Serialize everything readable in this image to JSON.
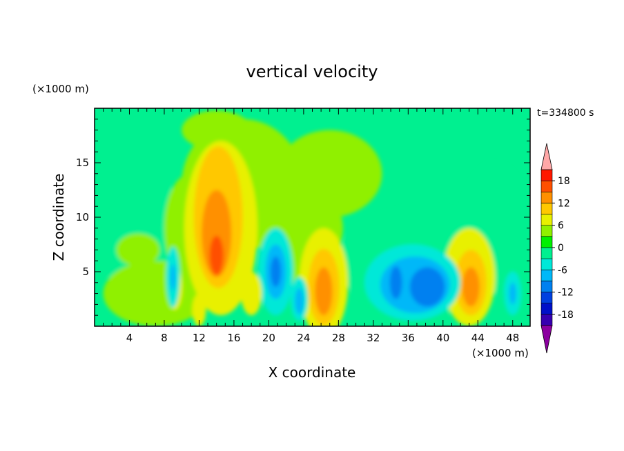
{
  "chart_data": {
    "type": "heatmap",
    "title": "vertical velocity",
    "xlabel": "X coordinate",
    "ylabel": "Z coordinate",
    "x_unit": "(×1000 m)",
    "y_unit": "(×1000 m)",
    "time_label": "t=334800 s",
    "xlim": [
      0,
      50
    ],
    "ylim": [
      0,
      20
    ],
    "x_ticks": [
      4,
      8,
      12,
      16,
      20,
      24,
      28,
      32,
      36,
      40,
      44,
      48
    ],
    "y_ticks": [
      5,
      10,
      15
    ],
    "colorbar": {
      "ticks": [
        18,
        12,
        6,
        0,
        -6,
        -12,
        -18
      ],
      "levels": [
        -21,
        -18,
        -15,
        -12,
        -9,
        -6,
        -3,
        0,
        3,
        6,
        9,
        12,
        15,
        18,
        21
      ],
      "colors": [
        "#6a00a0",
        "#3600b0",
        "#0010c8",
        "#0040e0",
        "#0080f0",
        "#00b8f8",
        "#00e8d8",
        "#00f090",
        "#00f000",
        "#90f000",
        "#e8f000",
        "#ffc800",
        "#ff9000",
        "#ff5000",
        "#ff1800",
        "#ffa0a0"
      ],
      "under_color": "#8c00a0",
      "over_color": "#ffa8a8"
    },
    "features": [
      {
        "x": 14.0,
        "z": 6.5,
        "w": 12.0,
        "note": "updraft max"
      },
      {
        "x": 14.5,
        "z": 12.5,
        "w": 7.0
      },
      {
        "x": 26.3,
        "z": 3.2,
        "w": 11.0
      },
      {
        "x": 43.2,
        "z": 3.8,
        "w": 10.0
      },
      {
        "x": 20.8,
        "z": 5.0,
        "w": -11.0
      },
      {
        "x": 38.0,
        "z": 3.5,
        "w": -13.0
      },
      {
        "x": 34.8,
        "z": 4.0,
        "w": -10.0
      },
      {
        "x": 23.5,
        "z": 2.5,
        "w": -8.0
      },
      {
        "x": 9.0,
        "z": 4.5,
        "w": -5.0
      },
      {
        "x": 48.0,
        "z": 3.0,
        "w": -6.0
      }
    ]
  }
}
